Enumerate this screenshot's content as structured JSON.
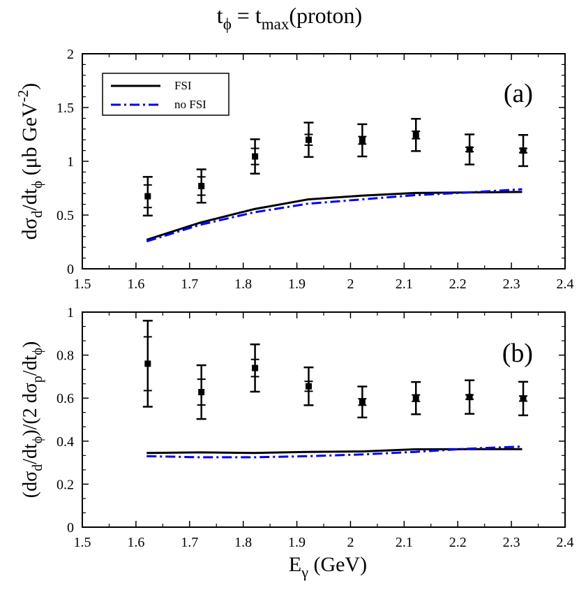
{
  "figure_title": {
    "base": "t",
    "sub1": "ϕ",
    "mid": " = t",
    "sub2": "max",
    "tail": "(proton)"
  },
  "x_title": {
    "base": "E",
    "sub": "γ",
    "tail": " (GeV)"
  },
  "legend": {
    "fsi": "FSI",
    "nofsi": "no FSI"
  },
  "colors": {
    "fsi": "#000000",
    "nofsi": "#0000ff",
    "data": "#000000"
  },
  "chart_data": [
    {
      "type": "line",
      "panel_label": "(a)",
      "xlim": [
        1.5,
        2.4
      ],
      "ylim": [
        0,
        2
      ],
      "xticks": [
        "1.5",
        "1.6",
        "1.7",
        "1.8",
        "1.9",
        "2",
        "2.1",
        "2.2",
        "2.3",
        "2.4"
      ],
      "yticks": [
        "0",
        "0.5",
        "1",
        "1.5",
        "2"
      ],
      "ylabel": {
        "a": "dσ",
        "b": "d",
        "c": "/dt",
        "d": "ϕ",
        "e": " (μb GeV",
        "f": "-2",
        "g": ")"
      },
      "series": [
        {
          "name": "FSI",
          "x": [
            1.62,
            1.72,
            1.82,
            1.92,
            2.02,
            2.12,
            2.22,
            2.32
          ],
          "values": [
            0.27,
            0.43,
            0.555,
            0.645,
            0.68,
            0.705,
            0.71,
            0.715
          ]
        },
        {
          "name": "no FSI",
          "x": [
            1.62,
            1.72,
            1.82,
            1.92,
            2.02,
            2.12,
            2.22,
            2.32
          ],
          "values": [
            0.255,
            0.41,
            0.525,
            0.605,
            0.645,
            0.685,
            0.71,
            0.74
          ]
        }
      ],
      "data_points": {
        "x": [
          1.622,
          1.722,
          1.822,
          1.922,
          2.022,
          2.122,
          2.222,
          2.322
        ],
        "y": [
          0.675,
          0.77,
          1.045,
          1.2,
          1.195,
          1.245,
          1.11,
          1.1
        ],
        "err_outer": [
          0.18,
          0.155,
          0.16,
          0.16,
          0.15,
          0.15,
          0.14,
          0.145
        ],
        "err_inner": [
          0.105,
          0.085,
          0.075,
          0.05,
          0.035,
          0.035,
          0.02,
          0.02
        ]
      }
    },
    {
      "type": "line",
      "panel_label": "(b)",
      "xlim": [
        1.5,
        2.4
      ],
      "ylim": [
        0,
        1
      ],
      "xticks": [
        "1.5",
        "1.6",
        "1.7",
        "1.8",
        "1.9",
        "2",
        "2.1",
        "2.2",
        "2.3",
        "2.4"
      ],
      "yticks": [
        "0",
        "0.2",
        "0.4",
        "0.6",
        "0.8",
        "1"
      ],
      "ylabel": {
        "a": "(dσ",
        "b": "d",
        "c": "/dt",
        "d": "ϕ",
        "e": ")/(2 dσ",
        "f": "p",
        "g": "/dt",
        "h": "ϕ",
        "i": ")"
      },
      "series": [
        {
          "name": "FSI",
          "x": [
            1.62,
            1.72,
            1.82,
            1.92,
            2.02,
            2.12,
            2.22,
            2.32
          ],
          "values": [
            0.345,
            0.348,
            0.345,
            0.35,
            0.352,
            0.362,
            0.363,
            0.363
          ]
        },
        {
          "name": "no FSI",
          "x": [
            1.62,
            1.72,
            1.82,
            1.92,
            2.02,
            2.12,
            2.22,
            2.32
          ],
          "values": [
            0.33,
            0.325,
            0.325,
            0.33,
            0.338,
            0.35,
            0.365,
            0.375
          ]
        }
      ],
      "data_points": {
        "x": [
          1.622,
          1.722,
          1.822,
          1.922,
          2.022,
          2.122,
          2.222,
          2.322
        ],
        "y": [
          0.76,
          0.628,
          0.74,
          0.655,
          0.582,
          0.6,
          0.605,
          0.598
        ],
        "err_outer": [
          0.2,
          0.125,
          0.11,
          0.088,
          0.072,
          0.075,
          0.078,
          0.078
        ],
        "err_inner": [
          0.125,
          0.06,
          0.04,
          0.023,
          0.015,
          0.015,
          0.01,
          0.012
        ]
      }
    }
  ]
}
